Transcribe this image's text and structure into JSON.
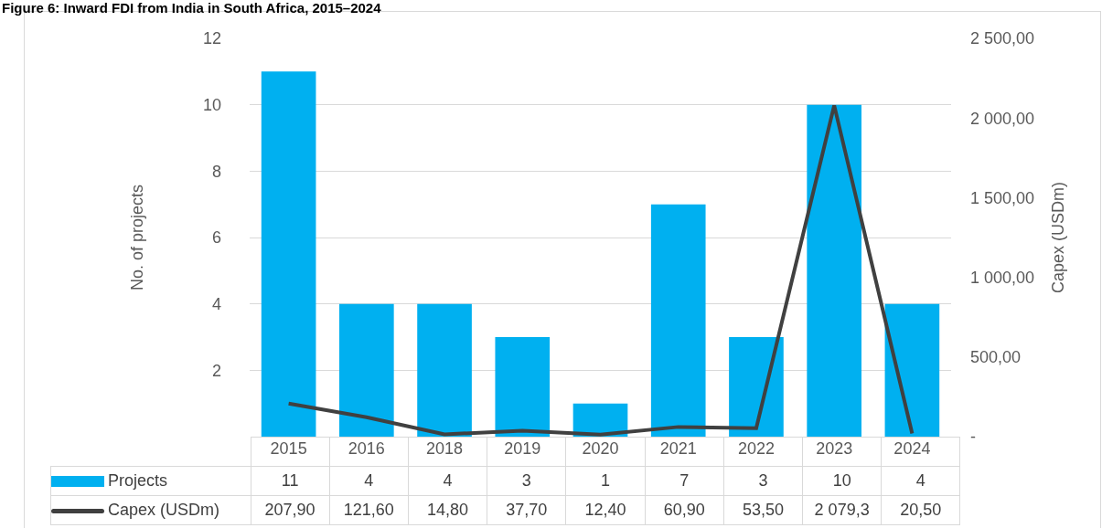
{
  "chart_data": {
    "type": "bar",
    "title": "Figure 6: Inward FDI from India in South Africa, 2015–2024",
    "ylabel": "No. of projects",
    "y2label": "Capex (USDm)",
    "categories": [
      "2015",
      "2016",
      "2018",
      "2019",
      "2020",
      "2021",
      "2022",
      "2023",
      "2024"
    ],
    "series": [
      {
        "name": "Projects",
        "color": "#00b0f0",
        "values": [
          11,
          4,
          4,
          3,
          1,
          7,
          3,
          10,
          4
        ],
        "value_labels": [
          "11",
          "4",
          "4",
          "3",
          "1",
          "7",
          "3",
          "10",
          "4"
        ]
      },
      {
        "name": "Capex (USDm)",
        "type": "line",
        "axis": "y2",
        "color": "#404040",
        "values": [
          207.9,
          121.6,
          14.8,
          37.7,
          12.4,
          60.9,
          53.5,
          2079.3,
          20.5
        ],
        "value_labels": [
          "207,90",
          "121,60",
          "14,80",
          "37,70",
          "12,40",
          "60,90",
          "53,50",
          "2 079,3",
          "20,50"
        ]
      }
    ],
    "ylim": [
      0,
      12
    ],
    "yticks": [
      2,
      4,
      6,
      8,
      10,
      12
    ],
    "y2lim": [
      0,
      2500
    ],
    "y2ticks": [
      {
        "value": 0,
        "label": "-"
      },
      {
        "value": 500,
        "label": "500,00"
      },
      {
        "value": 1000,
        "label": "1 000,00"
      },
      {
        "value": 1500,
        "label": "1 500,00"
      },
      {
        "value": 2000,
        "label": "2 000,00"
      },
      {
        "value": 2500,
        "label": "2 500,00"
      }
    ],
    "grid": "y",
    "legend": "bottom",
    "marker": "none",
    "line_style": "solid"
  }
}
